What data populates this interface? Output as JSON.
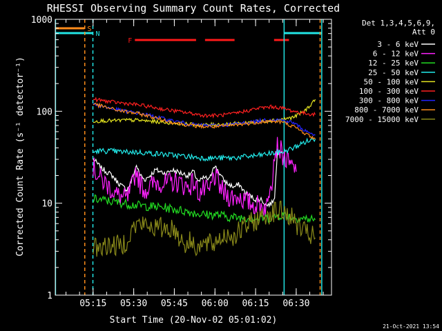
{
  "chart_data": {
    "type": "line",
    "title": "RHESSI Observing Summary Count Rates, Corrected",
    "ylabel": "Corrected Count Rate (s⁻¹ detector⁻¹)",
    "xlabel": "Start Time (20-Nov-02 05:01:02)",
    "timestamp": "21-Oct-2021 13:54",
    "yscale": "log",
    "ylim": [
      1,
      1000
    ],
    "xlim_minutes": [
      0,
      102
    ],
    "yticks": [
      "1",
      "10",
      "100",
      "1000"
    ],
    "xticks": [
      {
        "label": "05:15",
        "minute": 13.97
      },
      {
        "label": "05:30",
        "minute": 28.97
      },
      {
        "label": "05:45",
        "minute": 43.97
      },
      {
        "label": "06:00",
        "minute": 58.97
      },
      {
        "label": "06:15",
        "minute": 73.97
      },
      {
        "label": "06:30",
        "minute": 88.97
      }
    ],
    "legend": {
      "title": [
        "Det 1,3,4,5,6,9,",
        "Att 0"
      ],
      "placement": "right"
    },
    "flags": [
      {
        "label": "S",
        "color": "#ff8c1a",
        "segments": [
          [
            0,
            10.8
          ]
        ],
        "level": 1
      },
      {
        "label": "N",
        "color": "#22e5e5",
        "segments": [
          [
            0,
            13.9
          ],
          [
            84.5,
            98.4
          ]
        ],
        "level": 2
      },
      {
        "label": "F",
        "color": "#ff1a1a",
        "segments": [
          [
            29.4,
            52.0
          ],
          [
            55.3,
            66.2
          ],
          [
            80.8,
            86.3
          ]
        ],
        "level": 3
      }
    ],
    "markers": [
      {
        "minute": 0.1,
        "color": "#22e5e5",
        "dash": false
      },
      {
        "minute": 10.9,
        "color": "#ff8c1a",
        "dash": true
      },
      {
        "minute": 13.9,
        "color": "#22e5e5",
        "dash": true
      },
      {
        "minute": 84.5,
        "color": "#22e5e5",
        "dash": false
      },
      {
        "minute": 98.4,
        "color": "#22e5e5",
        "dash": false
      },
      {
        "minute": 97.8,
        "color": "#ff8c1a",
        "dash": true
      }
    ],
    "series": [
      {
        "name": "3 - 6 keV",
        "color": "#ffffff",
        "x": [
          14,
          15,
          17,
          19,
          21,
          23,
          25,
          26.5,
          28,
          30,
          31,
          33,
          35,
          37,
          39,
          41,
          43,
          45,
          47,
          49,
          51,
          53,
          55,
          57,
          58.5,
          60,
          62,
          64,
          66,
          68,
          70,
          72,
          74,
          76,
          78,
          80,
          81,
          82,
          83,
          84
        ],
        "y": [
          30,
          28,
          24,
          22,
          20,
          17,
          15,
          14,
          17,
          26,
          21,
          18,
          20,
          23,
          22,
          21,
          23,
          22,
          21,
          20,
          22,
          17,
          19,
          18,
          26,
          23,
          18,
          16,
          15,
          16,
          13,
          12,
          11,
          11,
          9.5,
          10,
          12,
          35,
          38,
          36
        ]
      },
      {
        "name": "6 - 12 keV",
        "color": "#ff22ff",
        "x": [
          14,
          15,
          17,
          19,
          21,
          23,
          25,
          26.5,
          28,
          30,
          31,
          33,
          35,
          37,
          39,
          41,
          43,
          45,
          47,
          49,
          51,
          53,
          55,
          57,
          58.5,
          60,
          62,
          64,
          66,
          68,
          70,
          72,
          74,
          76,
          77.5,
          78.5,
          79,
          79.5,
          80,
          81,
          82,
          83,
          84,
          85,
          86,
          87,
          88,
          89
        ],
        "y": [
          25,
          22,
          18,
          16,
          14,
          12,
          11.5,
          11,
          14,
          24,
          17,
          14,
          15,
          17,
          17,
          16,
          17,
          17,
          16,
          15,
          17,
          13,
          14,
          13,
          20,
          17,
          13,
          12,
          11.5,
          12,
          10.5,
          10,
          9.5,
          9.5,
          9,
          9.5,
          14,
          19,
          18,
          36,
          42,
          38,
          34,
          30,
          27,
          25,
          24,
          22
        ]
      },
      {
        "name": "12 - 25 keV",
        "color": "#22dd22",
        "x": [
          14,
          16,
          20,
          25,
          30,
          35,
          40,
          45,
          50,
          55,
          60,
          65,
          70,
          75,
          80,
          84,
          88,
          92,
          96
        ],
        "y": [
          11,
          11,
          10.5,
          10,
          9.5,
          9.2,
          9,
          8.5,
          8,
          7.5,
          7.5,
          7,
          7,
          6.8,
          7,
          7.5,
          7,
          6.8,
          6.6
        ]
      },
      {
        "name": "25 - 50 keV",
        "color": "#22eeee",
        "x": [
          14,
          16,
          20,
          25,
          30,
          35,
          40,
          45,
          50,
          55,
          60,
          65,
          70,
          75,
          80,
          84,
          86,
          88,
          90,
          92,
          94,
          96
        ],
        "y": [
          36,
          37,
          37,
          36,
          36,
          35,
          34,
          33,
          32,
          31,
          31,
          31,
          32,
          33,
          35,
          36,
          38,
          40,
          43,
          46,
          48,
          50
        ]
      },
      {
        "name": "50 - 100 keV",
        "color": "#e6e620",
        "x": [
          14,
          18,
          22,
          26,
          30,
          35,
          40,
          45,
          50,
          55,
          60,
          65,
          70,
          75,
          80,
          84,
          88,
          92,
          94,
          96
        ],
        "y": [
          78,
          79,
          79,
          80,
          80,
          78,
          76,
          74,
          72,
          71,
          72,
          73,
          75,
          77,
          80,
          82,
          86,
          100,
          115,
          135
        ]
      },
      {
        "name": "100 - 300 keV",
        "color": "#ff2020",
        "x": [
          14,
          18,
          22,
          26,
          30,
          35,
          40,
          45,
          50,
          55,
          60,
          65,
          70,
          75,
          80,
          84,
          88,
          92,
          96
        ],
        "y": [
          135,
          130,
          125,
          122,
          118,
          112,
          105,
          100,
          95,
          90,
          90,
          93,
          100,
          108,
          112,
          108,
          100,
          95,
          92
        ]
      },
      {
        "name": "300 - 800 keV",
        "color": "#2222ff",
        "x": [
          14,
          18,
          22,
          26,
          30,
          35,
          40,
          45,
          50,
          55,
          60,
          65,
          70,
          75,
          80,
          84,
          88,
          92,
          96
        ],
        "y": [
          120,
          112,
          105,
          100,
          96,
          90,
          83,
          77,
          72,
          70,
          70,
          72,
          75,
          78,
          82,
          80,
          75,
          62,
          55
        ]
      },
      {
        "name": "800 - 7000 keV",
        "color": "#ff8c1a",
        "x": [
          14,
          18,
          22,
          26,
          30,
          35,
          40,
          45,
          50,
          55,
          60,
          65,
          70,
          75,
          80,
          84,
          88,
          92,
          96
        ],
        "y": [
          120,
          112,
          104,
          99,
          95,
          88,
          80,
          74,
          70,
          68,
          68,
          70,
          73,
          76,
          78,
          76,
          68,
          58,
          50
        ]
      },
      {
        "name": "7000 - 15000 keV",
        "color": "#8a8a1a",
        "x": [
          14,
          16,
          18,
          20,
          22,
          24,
          26,
          28,
          30,
          32,
          34,
          36,
          38,
          40,
          42,
          44,
          46,
          48,
          50,
          52,
          54,
          56,
          58,
          60,
          62,
          64,
          66,
          68,
          70,
          72,
          74,
          76,
          78,
          80,
          82,
          84,
          86,
          88,
          90,
          92,
          94,
          96
        ],
        "y": [
          3.2,
          3.5,
          3.3,
          3.6,
          3.4,
          3.5,
          3.8,
          5,
          5.8,
          6,
          5.5,
          5.6,
          5.3,
          5.5,
          5.4,
          5.2,
          4.2,
          3.6,
          3.8,
          3.5,
          3.4,
          3.6,
          3.5,
          4,
          4.4,
          4.6,
          4.4,
          4.9,
          5.5,
          6,
          6.5,
          7,
          7.5,
          8,
          8.2,
          8,
          7.5,
          6.5,
          5.5,
          4.8,
          4.5,
          4.2
        ]
      }
    ]
  }
}
